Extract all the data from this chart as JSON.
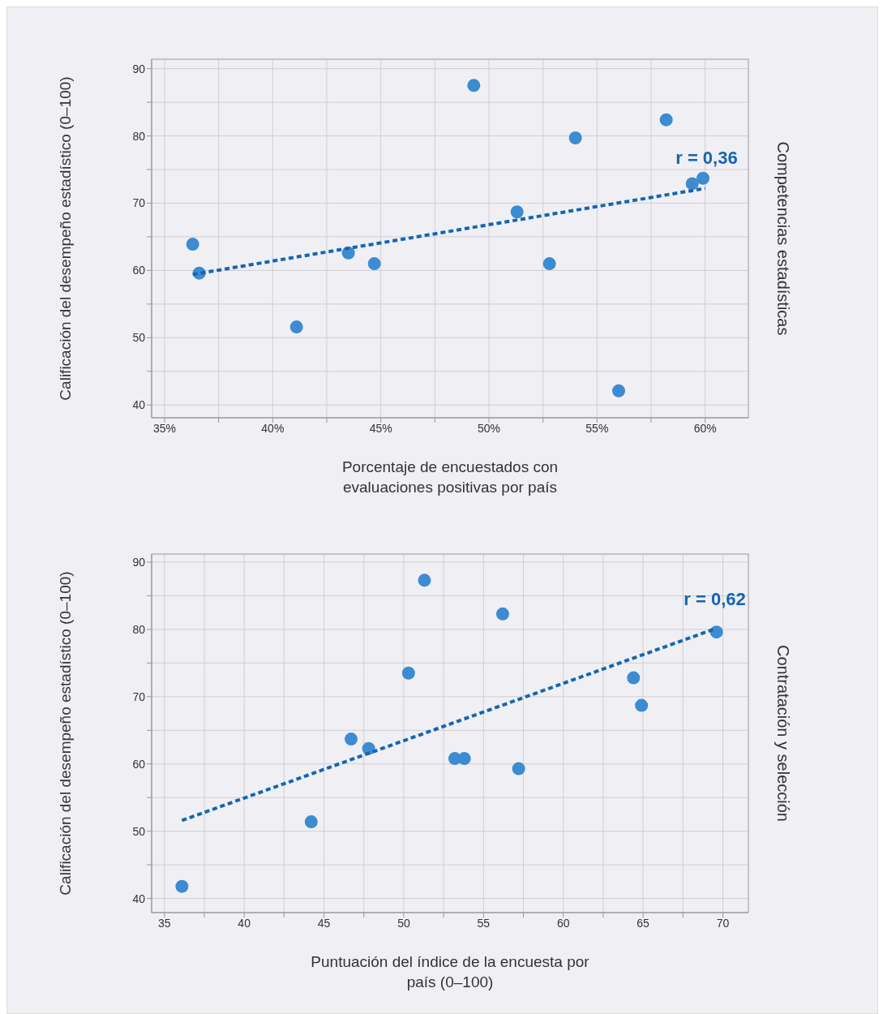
{
  "chart_data": [
    {
      "type": "scatter",
      "y2label": "Competencias estadísticas",
      "xlabel": "Porcentaje de encuestados con evaluaciones positivas por país",
      "ylabel": "Calificación del desempeño estadístico (0–100)",
      "annotations": [
        "r = 0,36"
      ],
      "marker": "circle",
      "grid": true,
      "xlim": [
        34.4,
        62
      ],
      "ylim": [
        38.1,
        91.4
      ],
      "xticks": [
        {
          "value": 35,
          "label": "35%"
        },
        {
          "value": 37.5,
          "label": null
        },
        {
          "value": 40,
          "label": "40%"
        },
        {
          "value": 42.5,
          "label": null
        },
        {
          "value": 45,
          "label": "45%"
        },
        {
          "value": 47.5,
          "label": null
        },
        {
          "value": 50,
          "label": "50%"
        },
        {
          "value": 52.5,
          "label": null
        },
        {
          "value": 55,
          "label": "55%"
        },
        {
          "value": 57.5,
          "label": null
        },
        {
          "value": 60,
          "label": "60%"
        }
      ],
      "yticks": [
        40,
        {
          "value": 45,
          "label": null
        },
        50,
        {
          "value": 55,
          "label": null
        },
        60,
        {
          "value": 65,
          "label": null
        },
        70,
        {
          "value": 75,
          "label": null
        },
        80,
        {
          "value": 85,
          "label": null
        },
        90
      ],
      "series": [
        {
          "type": "scatter",
          "color": "#3d8bd0",
          "x": [
            36.3,
            36.6,
            41.1,
            43.5,
            44.7,
            49.3,
            51.3,
            52.8,
            54.0,
            56.0,
            58.2,
            59.4,
            59.9
          ],
          "values": [
            63.9,
            59.6,
            51.6,
            62.6,
            61.0,
            87.5,
            68.7,
            61.0,
            79.7,
            42.1,
            82.4,
            72.9,
            73.7
          ]
        },
        {
          "type": "line",
          "color": "#1565b0",
          "line_style": "dashed",
          "marker": "none",
          "x": [
            36.3,
            60.0
          ],
          "values": [
            59.4,
            72.2
          ]
        }
      ]
    },
    {
      "type": "scatter",
      "y2label": "Contratación y selección",
      "xlabel": "Puntuación del índice de la encuesta por país (0–100)",
      "ylabel": "Calificación del desempeño estadístico (0–100)",
      "annotations": [
        "r = 0,62"
      ],
      "marker": "circle",
      "grid": true,
      "xlim": [
        34.2,
        71.6
      ],
      "ylim": [
        37.9,
        91.2
      ],
      "xticks": [
        35,
        {
          "value": 37.5,
          "label": null
        },
        40,
        {
          "value": 42.5,
          "label": null
        },
        45,
        {
          "value": 47.5,
          "label": null
        },
        50,
        {
          "value": 52.5,
          "label": null
        },
        55,
        {
          "value": 57.5,
          "label": null
        },
        60,
        {
          "value": 62.5,
          "label": null
        },
        65,
        {
          "value": 67.5,
          "label": null
        },
        70
      ],
      "yticks": [
        40,
        {
          "value": 45,
          "label": null
        },
        50,
        {
          "value": 55,
          "label": null
        },
        60,
        {
          "value": 65,
          "label": null
        },
        70,
        {
          "value": 75,
          "label": null
        },
        80,
        {
          "value": 85,
          "label": null
        },
        90
      ],
      "series": [
        {
          "type": "scatter",
          "color": "#3d8bd0",
          "x": [
            36.1,
            44.2,
            46.7,
            47.8,
            50.3,
            51.3,
            53.2,
            53.8,
            56.2,
            57.2,
            64.4,
            64.9,
            69.6
          ],
          "values": [
            41.8,
            51.4,
            63.7,
            62.3,
            73.5,
            87.3,
            60.8,
            60.8,
            82.3,
            59.3,
            72.8,
            68.7,
            79.6
          ]
        },
        {
          "type": "line",
          "color": "#1565b0",
          "line_style": "dashed",
          "marker": "none",
          "x": [
            36.1,
            69.4
          ],
          "values": [
            51.6,
            80.0
          ]
        }
      ]
    }
  ]
}
